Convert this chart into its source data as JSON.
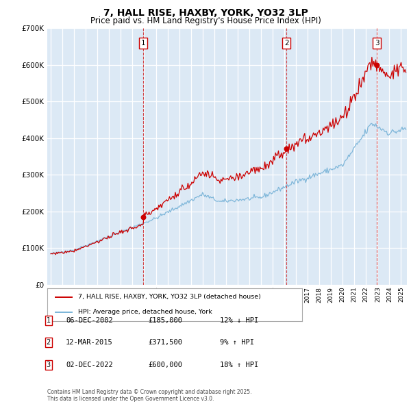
{
  "title": "7, HALL RISE, HAXBY, YORK, YO32 3LP",
  "subtitle": "Price paid vs. HM Land Registry's House Price Index (HPI)",
  "legend_property": "7, HALL RISE, HAXBY, YORK, YO32 3LP (detached house)",
  "legend_hpi": "HPI: Average price, detached house, York",
  "footer": "Contains HM Land Registry data © Crown copyright and database right 2025.\nThis data is licensed under the Open Government Licence v3.0.",
  "transactions": [
    {
      "num": 1,
      "date": "06-DEC-2002",
      "year": 2002.92,
      "price": 185000,
      "hpi_pct": "12% ↓ HPI"
    },
    {
      "num": 2,
      "date": "12-MAR-2015",
      "year": 2015.19,
      "price": 371500,
      "hpi_pct": "9% ↑ HPI"
    },
    {
      "num": 3,
      "date": "02-DEC-2022",
      "year": 2022.92,
      "price": 600000,
      "hpi_pct": "18% ↑ HPI"
    }
  ],
  "hpi_color": "#7ab4d8",
  "price_color": "#cc0000",
  "vline_color": "#cc0000",
  "plot_bg": "#dce9f5",
  "ylim": [
    0,
    700000
  ],
  "xlim_start": 1994.7,
  "xlim_end": 2025.5,
  "ytick_step": 100000,
  "title_fontsize": 10,
  "subtitle_fontsize": 8.5
}
